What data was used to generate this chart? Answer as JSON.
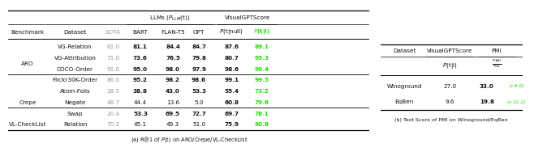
{
  "table_a": {
    "rows": [
      {
        "benchmark": "ARO",
        "dataset": "VG-Relation",
        "sota": "81.0",
        "bart": "81.1",
        "flan": "84.4",
        "opt": "84.7",
        "ptnull": "87.6",
        "pti": "89.1",
        "bm_show": true,
        "bold_llm": true,
        "bold_ptnull": false
      },
      {
        "benchmark": "ARO",
        "dataset": "VG-Attribution",
        "sota": "71.0",
        "bart": "73.6",
        "flan": "76.5",
        "opt": "79.8",
        "ptnull": "80.7",
        "pti": "95.3",
        "bm_show": false,
        "bold_llm": true,
        "bold_ptnull": false
      },
      {
        "benchmark": "ARO",
        "dataset": "COCO-Order",
        "sota": "91.0",
        "bart": "95.0",
        "flan": "98.0",
        "opt": "97.9",
        "ptnull": "98.6",
        "pti": "99.4",
        "bm_show": false,
        "bold_llm": true,
        "bold_ptnull": false
      },
      {
        "benchmark": "ARO",
        "dataset": "Flickr30K-Order",
        "sota": "86.0",
        "bart": "95.2",
        "flan": "98.2",
        "opt": "98.6",
        "ptnull": "99.1",
        "pti": "99.5",
        "bm_show": false,
        "bold_llm": true,
        "bold_ptnull": false
      },
      {
        "benchmark": "Crepe",
        "dataset": "Atom-Foils",
        "sota": "28.5",
        "bart": "38.8",
        "flan": "43.0",
        "opt": "53.3",
        "ptnull": "55.4",
        "pti": "73.2",
        "bm_show": true,
        "bold_llm": true,
        "bold_ptnull": false
      },
      {
        "benchmark": "Crepe",
        "dataset": "Negate",
        "sota": "48.7",
        "bart": "44.4",
        "flan": "13.6",
        "opt": "5.0",
        "ptnull": "60.8",
        "pti": "79.6",
        "bm_show": false,
        "bold_llm": false,
        "bold_ptnull": true
      },
      {
        "benchmark": "Crepe",
        "dataset": "Swap",
        "sota": "20.4",
        "bart": "53.3",
        "flan": "69.5",
        "opt": "72.7",
        "ptnull": "69.7",
        "pti": "78.1",
        "bm_show": false,
        "bold_llm": true,
        "bold_ptnull": false
      },
      {
        "benchmark": "VL-CheckList",
        "dataset": "Relation",
        "sota": "70.2",
        "bart": "45.1",
        "flan": "49.3",
        "opt": "51.0",
        "ptnull": "75.9",
        "pti": "90.8",
        "bm_show": true,
        "bold_llm": false,
        "bold_ptnull": true
      }
    ],
    "bm_offsets": {
      "ARO": -1.5,
      "Crepe": -1.0,
      "VL-CheckList": 0.0
    },
    "caption": "(a) R@1 of $P$(t) on ARO/Crepe/VL-CheckList",
    "sep_after": [
      3,
      6
    ]
  },
  "table_b": {
    "rows": [
      {
        "dataset": "Winoground",
        "vgpt": "27.0",
        "pmi": "33.0",
        "delta": "+6.0"
      },
      {
        "dataset": "EqBen",
        "vgpt": "9.6",
        "pmi": "19.8",
        "delta": "+10.2"
      }
    ],
    "caption": "(b) Text Score of PMI on Winoground/EqBen"
  },
  "gray": "#999999",
  "green": "#22dd00",
  "black": "#111111"
}
